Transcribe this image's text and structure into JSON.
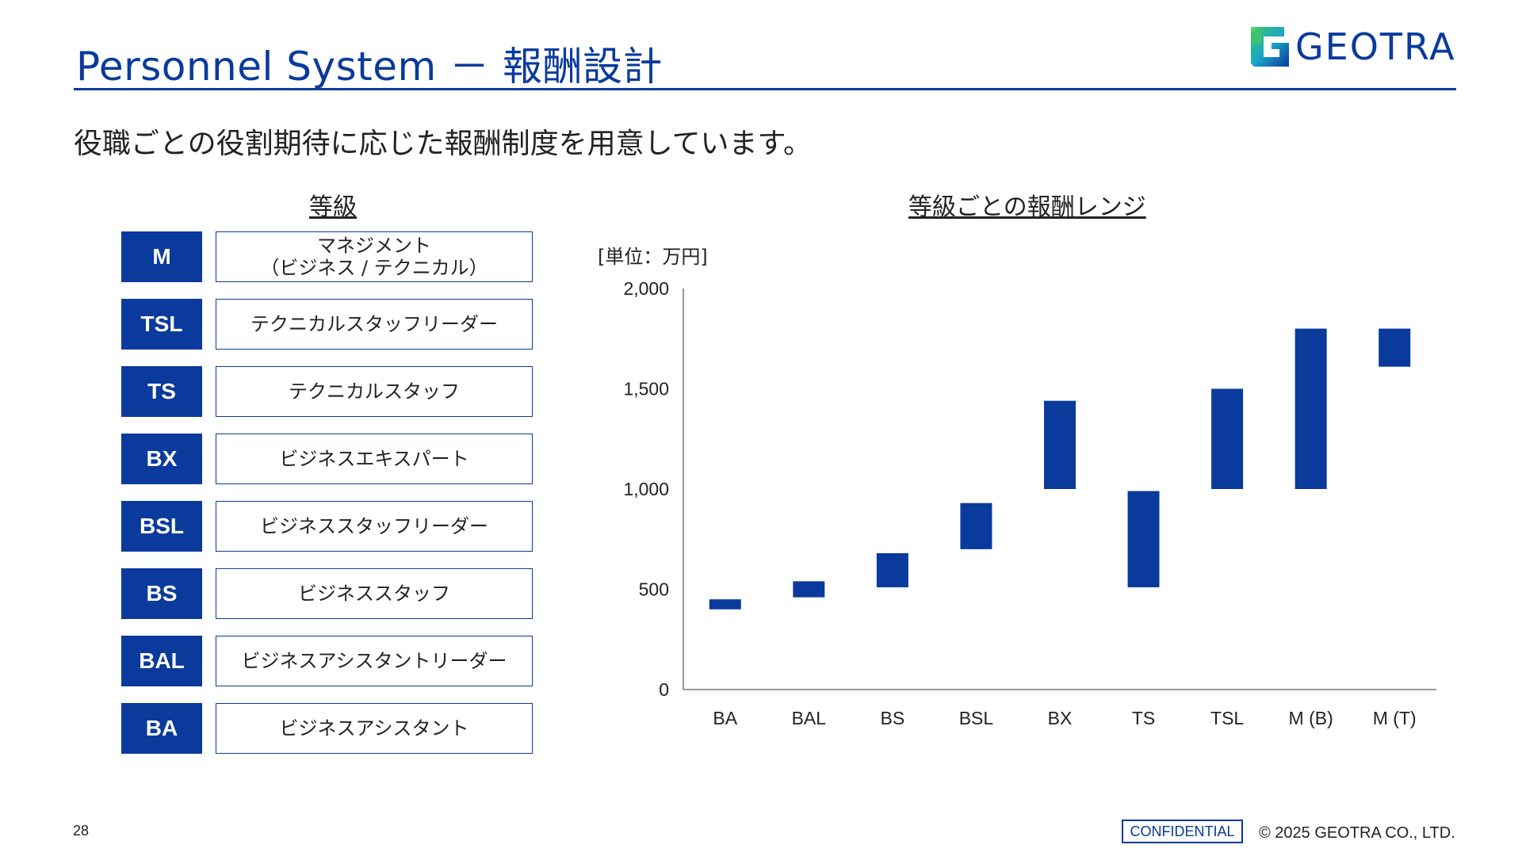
{
  "header": {
    "title": "Personnel System － 報酬設計",
    "logo_text": "GEOTRA"
  },
  "subtitle": "役職ごとの役割期待に応じた報酬制度を用意しています。",
  "grades_section": {
    "heading": "等級",
    "items": [
      {
        "code": "M",
        "label": "マネジメント\n（ビジネス / テクニカル）"
      },
      {
        "code": "TSL",
        "label": "テクニカルスタッフリーダー"
      },
      {
        "code": "TS",
        "label": "テクニカルスタッフ"
      },
      {
        "code": "BX",
        "label": "ビジネスエキスパート"
      },
      {
        "code": "BSL",
        "label": "ビジネススタッフリーダー"
      },
      {
        "code": "BS",
        "label": "ビジネススタッフ"
      },
      {
        "code": "BAL",
        "label": "ビジネスアシスタントリーダー"
      },
      {
        "code": "BA",
        "label": "ビジネスアシスタント"
      }
    ]
  },
  "chart_section": {
    "heading": "等級ごとの報酬レンジ"
  },
  "chart_data": {
    "type": "bar",
    "subtype": "floating-range",
    "unit_label": "[単位：万円]",
    "categories": [
      "BA",
      "BAL",
      "BS",
      "BSL",
      "BX",
      "TS",
      "TSL",
      "M (B)",
      "M (T)"
    ],
    "ranges": [
      [
        400,
        450
      ],
      [
        460,
        540
      ],
      [
        510,
        680
      ],
      [
        700,
        930
      ],
      [
        1000,
        1440
      ],
      [
        510,
        990
      ],
      [
        1000,
        1500
      ],
      [
        1000,
        1800
      ],
      [
        1610,
        1800
      ]
    ],
    "ylim": [
      0,
      2000
    ],
    "yticks": [
      0,
      500,
      1000,
      1500,
      2000
    ],
    "ytick_labels": [
      "0",
      "500",
      "1,000",
      "1,500",
      "2,000"
    ],
    "bar_color": "#0a3a9c",
    "grid": false
  },
  "footer": {
    "page_number": "28",
    "confidential": "CONFIDENTIAL",
    "copyright": "© 2025 GEOTRA CO., LTD."
  },
  "colors": {
    "primary": "#0a3a9c",
    "logo_green": "#2fb56a",
    "logo_teal": "#1aa6c8"
  }
}
